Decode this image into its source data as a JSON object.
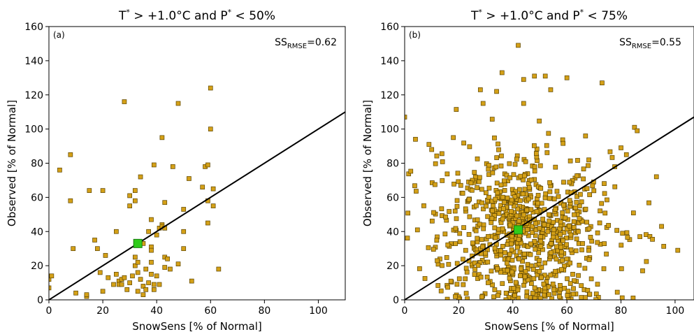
{
  "chart_data": [
    {
      "type": "scatter",
      "panel_label": "(a)",
      "title_pre": "T",
      "title_mid": " > +1.0°C and P",
      "title_post": " < 50%",
      "title_sup": "*",
      "xlabel": "SnowSens [% of Normal]",
      "ylabel": "Observed [% of Normal]",
      "xlim": [
        0,
        110
      ],
      "ylim": [
        0,
        160
      ],
      "xticks": [
        0,
        20,
        40,
        60,
        80,
        100
      ],
      "yticks": [
        0,
        20,
        40,
        60,
        80,
        100,
        120,
        140,
        160
      ],
      "ss_label": "SS",
      "ss_sub": "RMSE",
      "ss_value": "=0.62",
      "line": {
        "slope": 1.0,
        "intercept": 0
      },
      "mean_point": {
        "x": 33,
        "y": 33
      },
      "point_color": "#d4a017",
      "mean_color": "#2ecc1a",
      "points": [
        [
          0,
          7
        ],
        [
          0,
          12
        ],
        [
          1,
          14
        ],
        [
          4,
          76
        ],
        [
          8,
          85
        ],
        [
          8,
          58
        ],
        [
          9,
          30
        ],
        [
          10,
          4
        ],
        [
          15,
          64
        ],
        [
          14,
          2
        ],
        [
          14,
          3
        ],
        [
          17,
          35
        ],
        [
          18,
          30
        ],
        [
          19,
          16
        ],
        [
          20,
          64
        ],
        [
          20,
          5
        ],
        [
          21,
          26
        ],
        [
          22,
          13
        ],
        [
          24,
          9
        ],
        [
          25,
          40
        ],
        [
          25,
          15
        ],
        [
          26,
          11
        ],
        [
          26,
          9
        ],
        [
          27,
          9
        ],
        [
          27,
          12
        ],
        [
          28,
          116
        ],
        [
          28,
          13
        ],
        [
          29,
          6
        ],
        [
          30,
          61
        ],
        [
          30,
          55
        ],
        [
          30,
          10
        ],
        [
          31,
          14
        ],
        [
          32,
          64
        ],
        [
          32,
          58
        ],
        [
          32,
          20
        ],
        [
          32,
          25
        ],
        [
          33,
          5
        ],
        [
          33,
          16
        ],
        [
          33,
          22
        ],
        [
          34,
          72
        ],
        [
          34,
          12
        ],
        [
          35,
          33
        ],
        [
          35,
          8
        ],
        [
          35,
          3
        ],
        [
          36,
          18
        ],
        [
          36,
          6
        ],
        [
          37,
          40
        ],
        [
          37,
          10
        ],
        [
          38,
          47
        ],
        [
          38,
          31
        ],
        [
          38,
          29
        ],
        [
          38,
          22
        ],
        [
          38,
          15
        ],
        [
          39,
          9
        ],
        [
          39,
          79
        ],
        [
          39,
          6
        ],
        [
          40,
          38
        ],
        [
          40,
          14
        ],
        [
          41,
          42
        ],
        [
          41,
          9
        ],
        [
          42,
          44
        ],
        [
          42,
          43
        ],
        [
          42,
          95
        ],
        [
          43,
          57
        ],
        [
          43,
          42
        ],
        [
          43,
          25
        ],
        [
          43,
          19
        ],
        [
          44,
          24
        ],
        [
          45,
          18
        ],
        [
          46,
          78
        ],
        [
          48,
          21
        ],
        [
          48,
          115
        ],
        [
          50,
          53
        ],
        [
          50,
          40
        ],
        [
          50,
          30
        ],
        [
          52,
          71
        ],
        [
          53,
          11
        ],
        [
          57,
          66
        ],
        [
          58,
          78
        ],
        [
          59,
          79
        ],
        [
          59,
          58
        ],
        [
          59,
          45
        ],
        [
          60,
          124
        ],
        [
          60,
          100
        ],
        [
          61,
          55
        ],
        [
          61,
          65
        ],
        [
          63,
          18
        ]
      ]
    },
    {
      "type": "scatter",
      "panel_label": "(b)",
      "title_pre": "T",
      "title_mid": " > +1.0°C and P",
      "title_post": " < 75%",
      "title_sup": "*",
      "xlabel": "SnowSens [% of Normal]",
      "ylabel": "Observed [% of Normal]",
      "xlim": [
        0,
        107
      ],
      "ylim": [
        0,
        160
      ],
      "xticks": [
        0,
        20,
        40,
        60,
        80,
        100
      ],
      "yticks": [
        0,
        20,
        40,
        60,
        80,
        100,
        120,
        140,
        160
      ],
      "ss_label": "SS",
      "ss_sub": "RMSE",
      "ss_value": "=0.55",
      "line": {
        "slope": 1.0,
        "intercept": 0
      },
      "mean_point": {
        "x": 42,
        "y": 41
      },
      "point_color": "#d4a017",
      "mean_color": "#2ecc1a",
      "n_random_points": 850,
      "extra_points": [
        [
          42,
          149
        ],
        [
          36,
          133
        ],
        [
          44,
          129
        ],
        [
          54,
          123
        ],
        [
          48,
          131
        ],
        [
          60,
          130
        ],
        [
          73,
          127
        ],
        [
          34,
          122
        ],
        [
          28,
          123
        ],
        [
          29,
          115
        ],
        [
          44,
          115
        ],
        [
          18,
          95
        ],
        [
          4,
          94
        ],
        [
          9,
          91
        ],
        [
          10,
          88
        ],
        [
          0,
          107
        ],
        [
          85,
          101
        ],
        [
          86,
          99
        ],
        [
          95,
          43
        ],
        [
          101,
          29
        ],
        [
          87,
          37
        ],
        [
          88,
          17
        ],
        [
          80,
          89
        ],
        [
          82,
          85
        ],
        [
          52,
          131
        ]
      ]
    }
  ]
}
